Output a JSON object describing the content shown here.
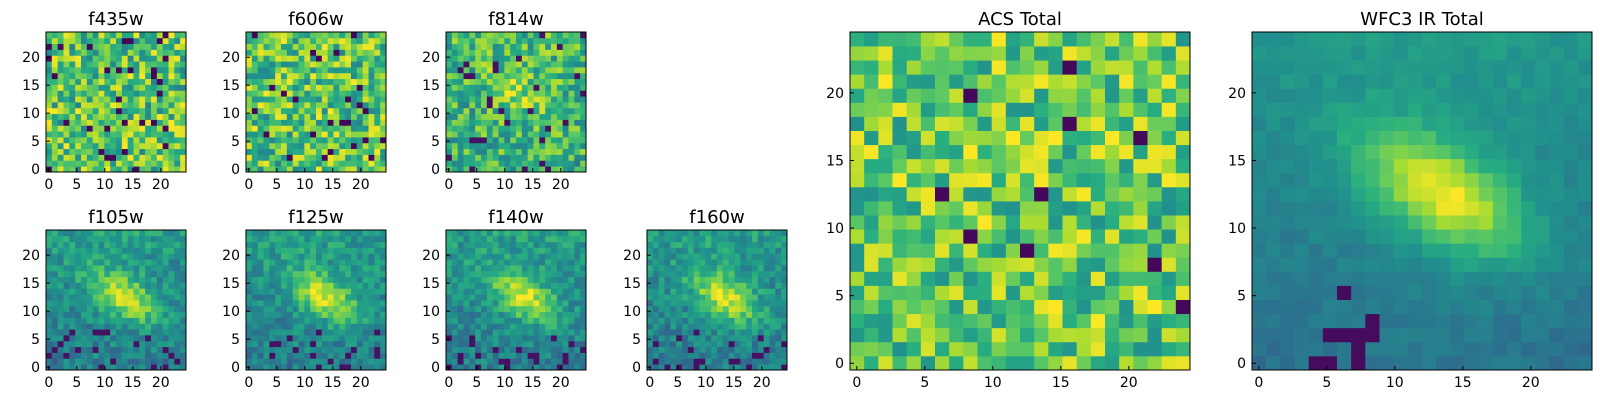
{
  "chart_data": [
    {
      "type": "heatmap",
      "title": "f435w",
      "xticks": [
        0,
        5,
        10,
        15,
        20
      ],
      "yticks": [
        0,
        5,
        10,
        15,
        20
      ],
      "xlim": [
        0,
        24
      ],
      "ylim": [
        0,
        24
      ],
      "grid_size": 24,
      "colormap": "viridis",
      "pattern": "noise"
    },
    {
      "type": "heatmap",
      "title": "f606w",
      "xticks": [
        0,
        5,
        10,
        15,
        20
      ],
      "yticks": [
        0,
        5,
        10,
        15,
        20
      ],
      "xlim": [
        0,
        24
      ],
      "ylim": [
        0,
        24
      ],
      "grid_size": 24,
      "colormap": "viridis",
      "pattern": "noise"
    },
    {
      "type": "heatmap",
      "title": "f814w",
      "xticks": [
        0,
        5,
        10,
        15,
        20
      ],
      "yticks": [
        0,
        5,
        10,
        15,
        20
      ],
      "xlim": [
        0,
        24
      ],
      "ylim": [
        0,
        24
      ],
      "grid_size": 24,
      "colormap": "viridis",
      "pattern": "noise-blob"
    },
    {
      "type": "heatmap",
      "title": "f105w",
      "xticks": [
        0,
        5,
        10,
        15,
        20
      ],
      "yticks": [
        0,
        5,
        10,
        15,
        20
      ],
      "xlim": [
        0,
        24
      ],
      "ylim": [
        0,
        24
      ],
      "grid_size": 24,
      "colormap": "viridis",
      "pattern": "blob"
    },
    {
      "type": "heatmap",
      "title": "f125w",
      "xticks": [
        0,
        5,
        10,
        15,
        20
      ],
      "yticks": [
        0,
        5,
        10,
        15,
        20
      ],
      "xlim": [
        0,
        24
      ],
      "ylim": [
        0,
        24
      ],
      "grid_size": 24,
      "colormap": "viridis",
      "pattern": "blob"
    },
    {
      "type": "heatmap",
      "title": "f140w",
      "xticks": [
        0,
        5,
        10,
        15,
        20
      ],
      "yticks": [
        0,
        5,
        10,
        15,
        20
      ],
      "xlim": [
        0,
        24
      ],
      "ylim": [
        0,
        24
      ],
      "grid_size": 24,
      "colormap": "viridis",
      "pattern": "blob"
    },
    {
      "type": "heatmap",
      "title": "f160w",
      "xticks": [
        0,
        5,
        10,
        15,
        20
      ],
      "yticks": [
        0,
        5,
        10,
        15,
        20
      ],
      "xlim": [
        0,
        24
      ],
      "ylim": [
        0,
        24
      ],
      "grid_size": 24,
      "colormap": "viridis",
      "pattern": "blob"
    },
    {
      "type": "heatmap",
      "title": "ACS Total",
      "xticks": [
        0,
        5,
        10,
        15,
        20
      ],
      "yticks": [
        0,
        5,
        10,
        15,
        20
      ],
      "xlim": [
        0,
        24
      ],
      "ylim": [
        0,
        24
      ],
      "grid_size": 24,
      "colormap": "viridis",
      "pattern": "noise-bright"
    },
    {
      "type": "heatmap",
      "title": "WFC3 IR Total",
      "xticks": [
        0,
        5,
        10,
        15,
        20
      ],
      "yticks": [
        0,
        5,
        10,
        15,
        20
      ],
      "xlim": [
        0,
        24
      ],
      "ylim": [
        0,
        24
      ],
      "grid_size": 24,
      "colormap": "viridis",
      "pattern": "blob-smooth"
    }
  ]
}
